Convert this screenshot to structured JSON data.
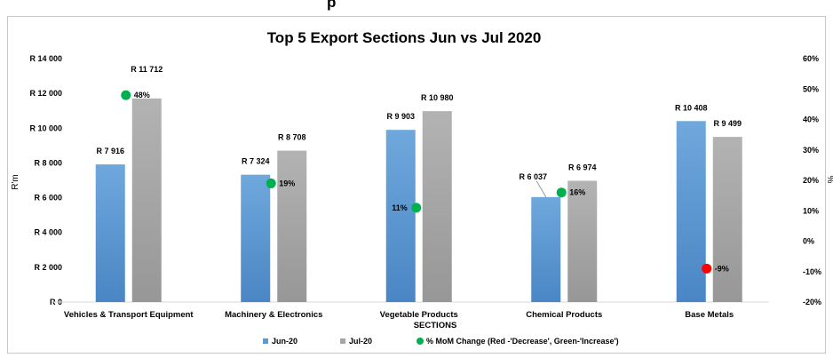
{
  "page": {
    "top_text": "p"
  },
  "chart_data": {
    "type": "bar",
    "title": "Top 5 Export Sections  Jun vs Jul 2020",
    "xlabel": "SECTIONS",
    "ylabel": "R'm",
    "y2label": "%",
    "categories": [
      "Vehicles & Transport Equipment",
      "Machinery & Electronics",
      "Vegetable Products",
      "Chemical Products",
      "Base Metals"
    ],
    "series": [
      {
        "name": "Jun-20",
        "values": [
          7916,
          7324,
          9903,
          6037,
          10408
        ],
        "labels": [
          "R 7 916",
          "R 7 324",
          "R 9 903",
          "R 6 037",
          "R 10 408"
        ],
        "color": "#5b9bd5"
      },
      {
        "name": "Jul-20",
        "values": [
          11712,
          8708,
          10980,
          6974,
          9499
        ],
        "labels": [
          "R 11 712",
          "R 8 708",
          "R 10 980",
          "R 6 974",
          "R 9 499"
        ],
        "color": "#a5a5a5"
      }
    ],
    "mom_change": {
      "name": "% MoM Change (Red -'Decrease', Green-'Increase')",
      "values": [
        48,
        19,
        11,
        16,
        -9
      ],
      "labels": [
        "48%",
        "19%",
        "11%",
        "16%",
        "-9%"
      ],
      "increase_color": "#00b050",
      "decrease_color": "#ff0000"
    },
    "y_ticks": [
      "R 0",
      "R 2 000",
      "R 4 000",
      "R 6 000",
      "R 8 000",
      "R 10 000",
      "R 12 000",
      "R 14 000"
    ],
    "y2_ticks": [
      "-20%",
      "-10%",
      "0%",
      "10%",
      "20%",
      "30%",
      "40%",
      "50%",
      "60%"
    ],
    "ylim": [
      0,
      14000
    ],
    "y2lim": [
      -20,
      60
    ],
    "legend_position": "bottom",
    "grid": false
  }
}
